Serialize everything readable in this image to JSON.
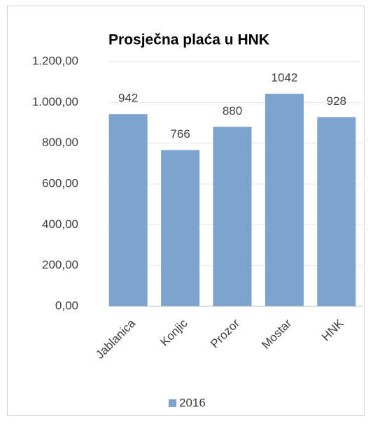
{
  "chart_data": {
    "type": "bar",
    "title": "Prosječna plaća u HNK",
    "categories": [
      "Jablanica",
      "Konjic",
      "Prozor",
      "Mostar",
      "HNK"
    ],
    "series": [
      {
        "name": "2016",
        "color": "#7ea3cf",
        "values": [
          942,
          766,
          880,
          1042,
          928
        ]
      }
    ],
    "ylim": [
      0,
      1200
    ],
    "yticks": [
      {
        "value": 0,
        "label": "0,00"
      },
      {
        "value": 200,
        "label": "200,00"
      },
      {
        "value": 400,
        "label": "400,00"
      },
      {
        "value": 600,
        "label": "600,00"
      },
      {
        "value": 800,
        "label": "800,00"
      },
      {
        "value": 1000,
        "label": "1.000,00"
      },
      {
        "value": 1200,
        "label": "1.200,00"
      }
    ],
    "grid": true,
    "legend": "bottom"
  }
}
